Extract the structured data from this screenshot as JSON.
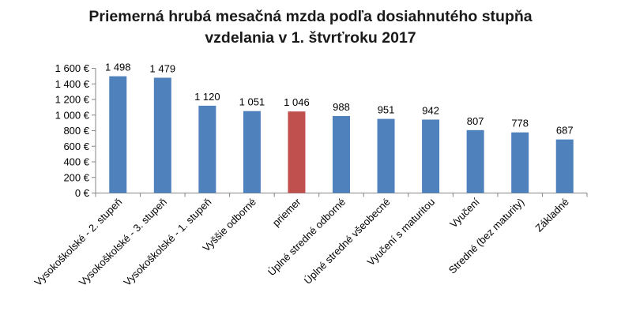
{
  "chart_data": {
    "type": "bar",
    "title_lines": [
      "Priemerná hrubá mesačná mzda podľa dosiahnutého stupňa",
      "vzdelania v 1. štvrťroku 2017"
    ],
    "categories": [
      "Vysokoškolské - 2. stupeň",
      "Vysokoškolské - 3. stupeň",
      "Vysokoškolské - 1. stupeň",
      "Vyššie odborné",
      "priemer",
      "Úplné stredné odborné",
      "Úplné stredné všeobecné",
      "Vyučení s maturitou",
      "Vyučení",
      "Stredné (bez maturity)",
      "Základné"
    ],
    "values": [
      1498,
      1479,
      1120,
      1051,
      1046,
      988,
      951,
      942,
      807,
      778,
      687
    ],
    "data_labels": [
      "1 498",
      "1 479",
      "1 120",
      "1 051",
      "1 046",
      "988",
      "951",
      "942",
      "807",
      "778",
      "687"
    ],
    "y_ticks": [
      0,
      200,
      400,
      600,
      800,
      1000,
      1200,
      1400,
      1600
    ],
    "y_tick_labels": [
      "0 €",
      "200 €",
      "400 €",
      "600 €",
      "800 €",
      "1 000 €",
      "1 200 €",
      "1 400 €",
      "1 600 €"
    ],
    "ylim": [
      0,
      1600
    ],
    "xlabel": "",
    "ylabel": "",
    "grid": false,
    "colors": {
      "default": "#4f81bd",
      "highlight": "#c0504d",
      "axis": "#868686"
    },
    "highlight_index": 4
  }
}
